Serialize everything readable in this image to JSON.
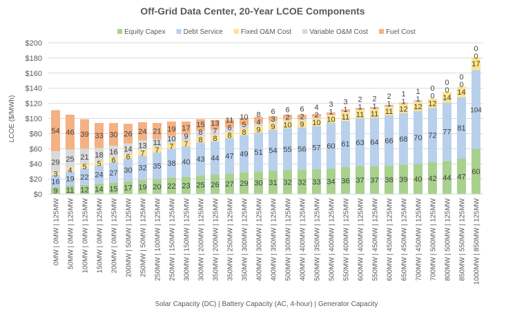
{
  "chart_data": {
    "type": "bar",
    "stacked": true,
    "title": "Off-Grid Data Center, 20-Year LCOE Components",
    "xlabel": "Solar Capacity (DC) | Battery Capacity (AC, 4-hour) | Generator Capacity",
    "ylabel": "LCOE ($/MWh)",
    "ylim": [
      0,
      200
    ],
    "yticks": [
      "$0",
      "$20",
      "$40",
      "$60",
      "$80",
      "$100",
      "$120",
      "$140",
      "$160",
      "$180",
      "$200"
    ],
    "grid": true,
    "legend_position": "top",
    "categories": [
      "0MW | 0MW | 125MW",
      "50MW | 0MW | 125MW",
      "100MW | 0MW | 125MW",
      "150MW | 0MW | 125MW",
      "200MW | 0MW | 125MW",
      "200MW | 50MW | 125MW",
      "250MW | 50MW | 125MW",
      "250MW | 100MW | 125MW",
      "250MW | 150MW | 125MW",
      "300MW | 150MW | 125MW",
      "300MW | 200MW | 125MW",
      "350MW | 200MW | 125MW",
      "350MW | 250MW | 125MW",
      "350MW | 300MW | 125MW",
      "400MW | 300MW | 125MW",
      "400MW | 350MW | 125MW",
      "500MW | 300MW | 125MW",
      "400MW | 400MW | 125MW",
      "500MW | 350MW | 125MW",
      "500MW | 400MW | 125MW",
      "550MW | 400MW | 125MW",
      "600MW | 400MW | 125MW",
      "550MW | 450MW | 125MW",
      "600MW | 450MW | 125MW",
      "650MW | 450MW | 125MW",
      "700MW | 450MW | 125MW",
      "700MW | 500MW | 125MW",
      "800MW | 500MW | 125MW",
      "850MW | 550MW | 125MW",
      "1000MW | 850MW | 125MW"
    ],
    "series": [
      {
        "name": "Equity Capex",
        "color": "#a9d18e",
        "values": [
          9,
          11,
          12,
          14,
          15,
          17,
          19,
          20,
          22,
          23,
          25,
          26,
          27,
          29,
          30,
          31,
          32,
          32,
          33,
          34,
          36,
          37,
          37,
          38,
          39,
          40,
          42,
          44,
          47,
          60
        ]
      },
      {
        "name": "Debt Service",
        "color": "#b8d0ec",
        "values": [
          16,
          19,
          22,
          24,
          27,
          30,
          32,
          35,
          38,
          40,
          43,
          44,
          47,
          49,
          51,
          54,
          55,
          56,
          57,
          60,
          61,
          63,
          64,
          66,
          68,
          70,
          72,
          77,
          81,
          104
        ]
      },
      {
        "name": "Fixed O&M Cost",
        "color": "#ffe38f",
        "values": [
          3,
          4,
          5,
          5,
          6,
          6,
          7,
          7,
          7,
          7,
          8,
          8,
          8,
          8,
          9,
          9,
          10,
          9,
          10,
          10,
          11,
          11,
          11,
          11,
          12,
          12,
          12,
          14,
          14,
          17
        ]
      },
      {
        "name": "Variable O&M Cost",
        "color": "#d9d9d9",
        "values": [
          29,
          25,
          21,
          18,
          16,
          14,
          13,
          11,
          10,
          9,
          8,
          7,
          6,
          5,
          4,
          3,
          2,
          2,
          2,
          1,
          1,
          1,
          1,
          1,
          1,
          1,
          0,
          0,
          0,
          0
        ]
      },
      {
        "name": "Fuel Cost",
        "color": "#f4b183",
        "values": [
          54,
          46,
          39,
          33,
          30,
          26,
          24,
          21,
          19,
          17,
          15,
          13,
          11,
          10,
          8,
          6,
          6,
          6,
          4,
          3,
          3,
          2,
          2,
          2,
          1,
          1,
          0,
          0,
          0,
          0
        ]
      }
    ]
  }
}
